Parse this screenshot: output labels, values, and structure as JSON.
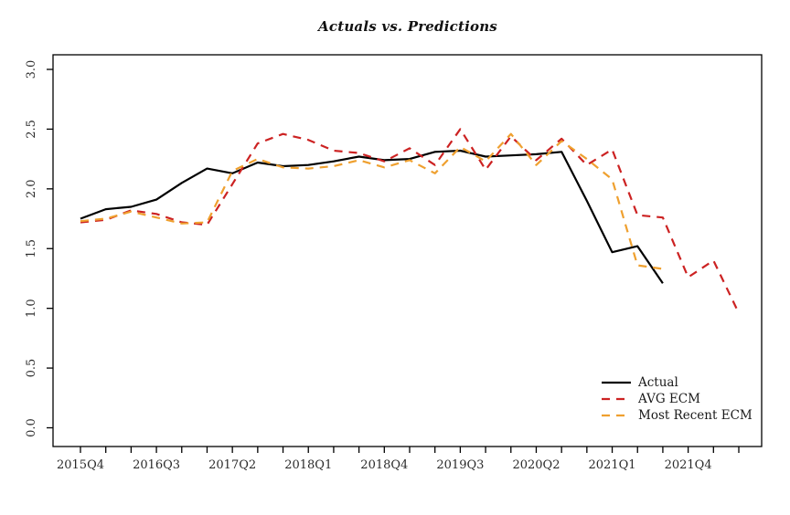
{
  "figure": {
    "background_color": "#ffffff"
  },
  "chart_data": {
    "type": "line",
    "title": "Actuals vs. Predictions",
    "xlabel": "",
    "ylabel": "",
    "ylim": [
      0.0,
      3.0
    ],
    "y_tick_labels": [
      "0.0",
      "0.5",
      "1.0",
      "1.5",
      "2.0",
      "2.5",
      "3.0"
    ],
    "y_tick_values": [
      0.0,
      0.5,
      1.0,
      1.5,
      2.0,
      2.5,
      3.0
    ],
    "x_tick_label_every": 3,
    "x_tick_labels_shown": [
      "2015Q4",
      "2016Q3",
      "2017Q2",
      "2018Q1",
      "2018Q4",
      "2019Q3",
      "2020Q2",
      "2021Q1",
      "2021Q4"
    ],
    "categories": [
      "2015Q4",
      "2016Q1",
      "2016Q2",
      "2016Q3",
      "2016Q4",
      "2017Q1",
      "2017Q2",
      "2017Q3",
      "2017Q4",
      "2018Q1",
      "2018Q2",
      "2018Q3",
      "2018Q4",
      "2019Q1",
      "2019Q2",
      "2019Q3",
      "2019Q4",
      "2020Q1",
      "2020Q2",
      "2020Q3",
      "2020Q4",
      "2021Q1",
      "2021Q2",
      "2021Q3",
      "2021Q4",
      "2022Q1",
      "2022Q2"
    ],
    "grid": false,
    "legend_position": "bottom-right",
    "legend_frame": false,
    "axis_color": "#000000",
    "tick_label_color": "#2b2b2b",
    "series": [
      {
        "name": "Actual",
        "color": "#000000",
        "line_style": "solid",
        "values": [
          1.75,
          1.83,
          1.85,
          1.91,
          2.05,
          2.17,
          2.13,
          2.22,
          2.19,
          2.2,
          2.23,
          2.27,
          2.24,
          2.25,
          2.31,
          2.32,
          2.27,
          2.28,
          2.29,
          2.31,
          1.9,
          1.47,
          1.52,
          1.21,
          null,
          null,
          null
        ]
      },
      {
        "name": "AVG ECM",
        "color": "#cc2222",
        "line_style": "dashed",
        "values": [
          1.72,
          1.74,
          1.82,
          1.79,
          1.72,
          1.7,
          2.04,
          2.38,
          2.46,
          2.41,
          2.32,
          2.3,
          2.23,
          2.34,
          2.2,
          2.5,
          2.16,
          2.44,
          2.24,
          2.42,
          2.2,
          2.33,
          1.78,
          1.76,
          1.26,
          1.4,
          0.96
        ]
      },
      {
        "name": "Most Recent ECM",
        "color": "#efa02f",
        "line_style": "dashed",
        "values": [
          1.73,
          1.75,
          1.81,
          1.76,
          1.71,
          1.72,
          2.15,
          2.25,
          2.18,
          2.17,
          2.19,
          2.24,
          2.18,
          2.24,
          2.13,
          2.35,
          2.23,
          2.46,
          2.2,
          2.4,
          2.25,
          2.08,
          1.36,
          1.33,
          null,
          null,
          null
        ]
      }
    ]
  }
}
